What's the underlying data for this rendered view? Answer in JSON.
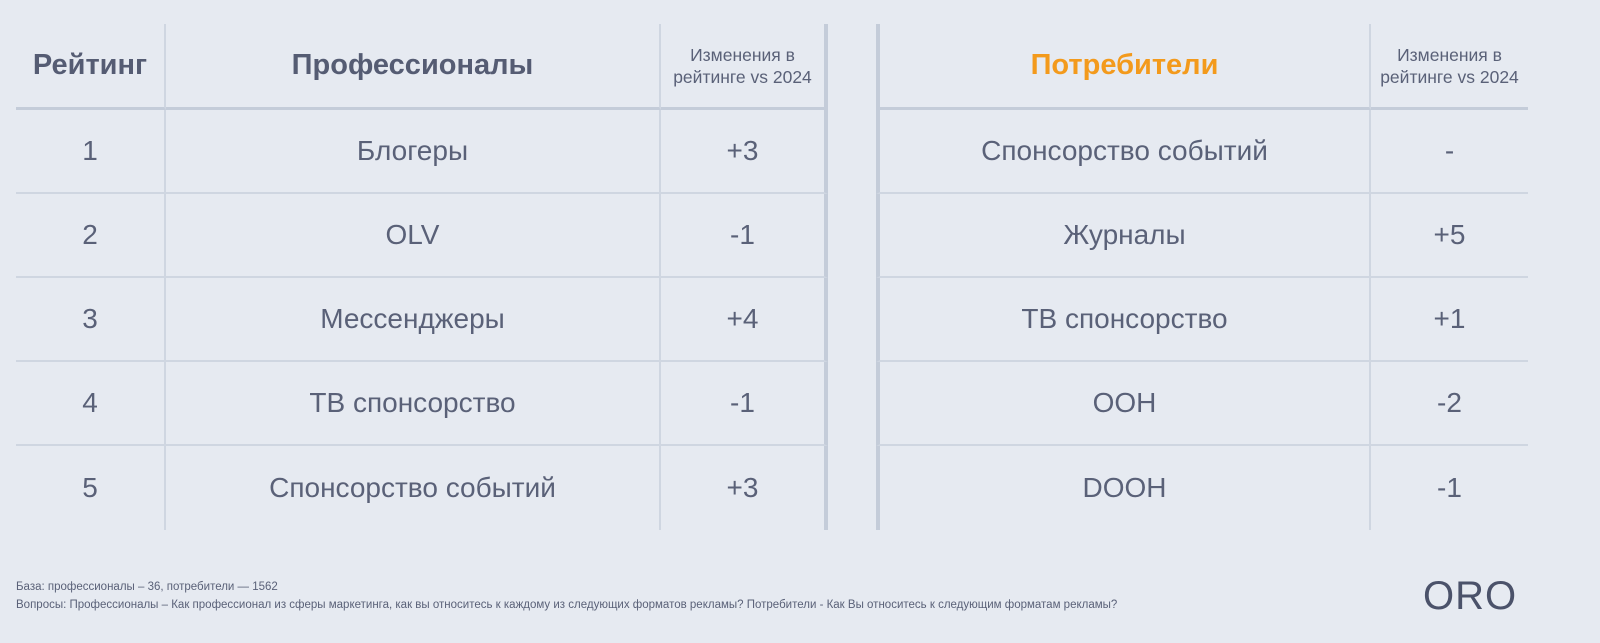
{
  "left_table": {
    "headers": {
      "rank": "Рейтинг",
      "group": "Профессионалы",
      "change": "Изменения в рейтинге vs 2024"
    },
    "rows": [
      {
        "rank": "1",
        "format": "Блогеры",
        "change": "+3"
      },
      {
        "rank": "2",
        "format": "OLV",
        "change": "-1"
      },
      {
        "rank": "3",
        "format": "Мессенджеры",
        "change": "+4"
      },
      {
        "rank": "4",
        "format": "ТВ спонсорство",
        "change": "-1"
      },
      {
        "rank": "5",
        "format": "Спонсорство событий",
        "change": "+3"
      }
    ]
  },
  "right_table": {
    "headers": {
      "group": "Потребители",
      "change": "Изменения в рейтинге vs 2024"
    },
    "rows": [
      {
        "format": "Спонсорство событий",
        "change": "-"
      },
      {
        "format": "Журналы",
        "change": "+5"
      },
      {
        "format": "ТВ спонсорство",
        "change": "+1"
      },
      {
        "format": "OOH",
        "change": "-2"
      },
      {
        "format": "DOOH",
        "change": "-1"
      }
    ]
  },
  "footer": {
    "base": "База: профессионалы – 36, потребители — 1562",
    "questions": "Вопросы: Профессионалы – Как профессионал из сферы маркетинга, как вы  относитесь к каждому из следующих форматов рекламы? Потребители - Как Вы относитесь к следующим форматам рекламы?"
  },
  "logo": "ORO",
  "colors": {
    "background": "#e6eaf1",
    "text": "#5a6178",
    "accent_orange": "#f39a1c",
    "lines": "#c4ccd9"
  }
}
